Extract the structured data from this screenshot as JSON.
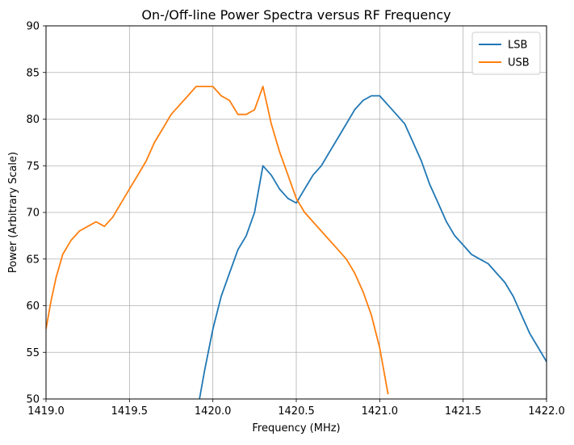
{
  "chart_data": {
    "type": "line",
    "title": "On-/Off-line Power Spectra versus RF Frequency",
    "xlabel": "Frequency (MHz)",
    "ylabel": "Power (Arbitrary Scale)",
    "xlim": [
      1419.0,
      1422.0
    ],
    "ylim": [
      50,
      90
    ],
    "xticks": [
      1419.0,
      1419.5,
      1420.0,
      1420.5,
      1421.0,
      1421.5,
      1422.0
    ],
    "xtick_labels": [
      "1419.0",
      "1419.5",
      "1420.0",
      "1420.5",
      "1421.0",
      "1421.5",
      "1422.0"
    ],
    "yticks": [
      50,
      55,
      60,
      65,
      70,
      75,
      80,
      85,
      90
    ],
    "ytick_labels": [
      "50",
      "55",
      "60",
      "65",
      "70",
      "75",
      "80",
      "85",
      "90"
    ],
    "grid": true,
    "legend_position": "top-right",
    "series": [
      {
        "name": "LSB",
        "color": "#1f77b4",
        "x": [
          1419.92,
          1419.95,
          1420.0,
          1420.05,
          1420.1,
          1420.15,
          1420.2,
          1420.25,
          1420.3,
          1420.35,
          1420.4,
          1420.45,
          1420.5,
          1420.55,
          1420.6,
          1420.65,
          1420.7,
          1420.75,
          1420.8,
          1420.85,
          1420.9,
          1420.95,
          1421.0,
          1421.05,
          1421.1,
          1421.15,
          1421.2,
          1421.25,
          1421.3,
          1421.35,
          1421.4,
          1421.45,
          1421.5,
          1421.55,
          1421.6,
          1421.65,
          1421.7,
          1421.75,
          1421.8,
          1421.85,
          1421.9,
          1421.95,
          1422.0
        ],
        "y": [
          50.0,
          53.0,
          57.5,
          61.0,
          63.5,
          66.0,
          67.5,
          70.0,
          75.0,
          74.0,
          72.5,
          71.5,
          71.0,
          72.5,
          74.0,
          75.0,
          76.5,
          78.0,
          79.5,
          81.0,
          82.0,
          82.5,
          82.5,
          81.5,
          80.5,
          79.5,
          77.5,
          75.5,
          73.0,
          71.0,
          69.0,
          67.5,
          66.5,
          65.5,
          65.0,
          64.5,
          63.5,
          62.5,
          61.0,
          59.0,
          57.0,
          55.5,
          54.0
        ]
      },
      {
        "name": "USB",
        "color": "#ff7f0e",
        "x": [
          1419.0,
          1419.03,
          1419.06,
          1419.1,
          1419.15,
          1419.2,
          1419.25,
          1419.3,
          1419.35,
          1419.4,
          1419.45,
          1419.5,
          1419.55,
          1419.6,
          1419.65,
          1419.7,
          1419.75,
          1419.8,
          1419.85,
          1419.9,
          1419.95,
          1420.0,
          1420.05,
          1420.1,
          1420.15,
          1420.2,
          1420.25,
          1420.3,
          1420.35,
          1420.4,
          1420.45,
          1420.5,
          1420.55,
          1420.6,
          1420.65,
          1420.7,
          1420.75,
          1420.8,
          1420.85,
          1420.9,
          1420.95,
          1421.0,
          1421.05
        ],
        "y": [
          57.5,
          60.5,
          63.0,
          65.5,
          67.0,
          68.0,
          68.5,
          69.0,
          68.5,
          69.5,
          71.0,
          72.5,
          74.0,
          75.5,
          77.5,
          79.0,
          80.5,
          81.5,
          82.5,
          83.5,
          83.5,
          83.5,
          82.5,
          82.0,
          80.5,
          80.5,
          81.0,
          83.5,
          79.5,
          76.5,
          74.0,
          71.5,
          70.0,
          69.0,
          68.0,
          67.0,
          66.0,
          65.0,
          63.5,
          61.5,
          59.0,
          55.5,
          50.5
        ]
      }
    ]
  }
}
